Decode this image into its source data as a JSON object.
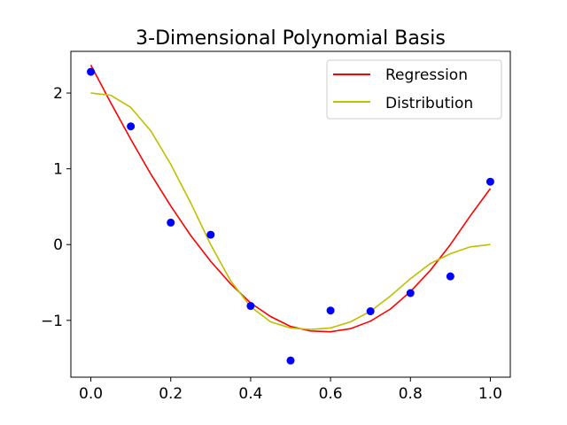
{
  "chart_data": {
    "type": "scatter",
    "title": "3-Dimensional Polynomial Basis",
    "xlabel": "",
    "ylabel": "",
    "xlim": [
      -0.05,
      1.05
    ],
    "ylim": [
      -1.75,
      2.55
    ],
    "x_ticks": [
      0.0,
      0.2,
      0.4,
      0.6,
      0.8,
      1.0
    ],
    "x_tick_labels": [
      "0.0",
      "0.2",
      "0.4",
      "0.6",
      "0.8",
      "1.0"
    ],
    "y_ticks": [
      -1,
      0,
      1,
      2
    ],
    "y_tick_labels": [
      "−1",
      "0",
      "1",
      "2"
    ],
    "grid": false,
    "legend_position": "top-right",
    "series": [
      {
        "name": "Regression",
        "kind": "line",
        "color": "#ff0000",
        "x": [
          0.0,
          0.05,
          0.1,
          0.15,
          0.2,
          0.25,
          0.3,
          0.35,
          0.4,
          0.45,
          0.5,
          0.55,
          0.6,
          0.65,
          0.7,
          0.75,
          0.8,
          0.85,
          0.9,
          0.95,
          1.0
        ],
        "y": [
          2.37,
          1.87,
          1.39,
          0.93,
          0.51,
          0.12,
          -0.22,
          -0.52,
          -0.77,
          -0.95,
          -1.08,
          -1.14,
          -1.15,
          -1.11,
          -1.01,
          -0.85,
          -0.62,
          -0.34,
          0.0,
          0.38,
          0.74
        ]
      },
      {
        "name": "Distribution",
        "kind": "line",
        "color": "#bfbf00",
        "x": [
          0.0,
          0.05,
          0.1,
          0.15,
          0.2,
          0.25,
          0.3,
          0.35,
          0.4,
          0.45,
          0.5,
          0.55,
          0.6,
          0.65,
          0.7,
          0.75,
          0.8,
          0.85,
          0.9,
          0.95,
          1.0
        ],
        "y": [
          2.0,
          1.97,
          1.81,
          1.5,
          1.06,
          0.55,
          0.0,
          -0.48,
          -0.82,
          -1.02,
          -1.1,
          -1.12,
          -1.1,
          -1.02,
          -0.88,
          -0.68,
          -0.45,
          -0.25,
          -0.12,
          -0.03,
          0.0
        ]
      },
      {
        "kind": "scatter",
        "color": "#0000ff",
        "x": [
          0.0,
          0.1,
          0.2,
          0.3,
          0.4,
          0.5,
          0.6,
          0.7,
          0.8,
          0.9,
          1.0
        ],
        "y": [
          2.28,
          1.56,
          0.29,
          0.13,
          -0.81,
          -1.53,
          -0.87,
          -0.88,
          -0.64,
          -0.42,
          0.83
        ]
      }
    ]
  }
}
